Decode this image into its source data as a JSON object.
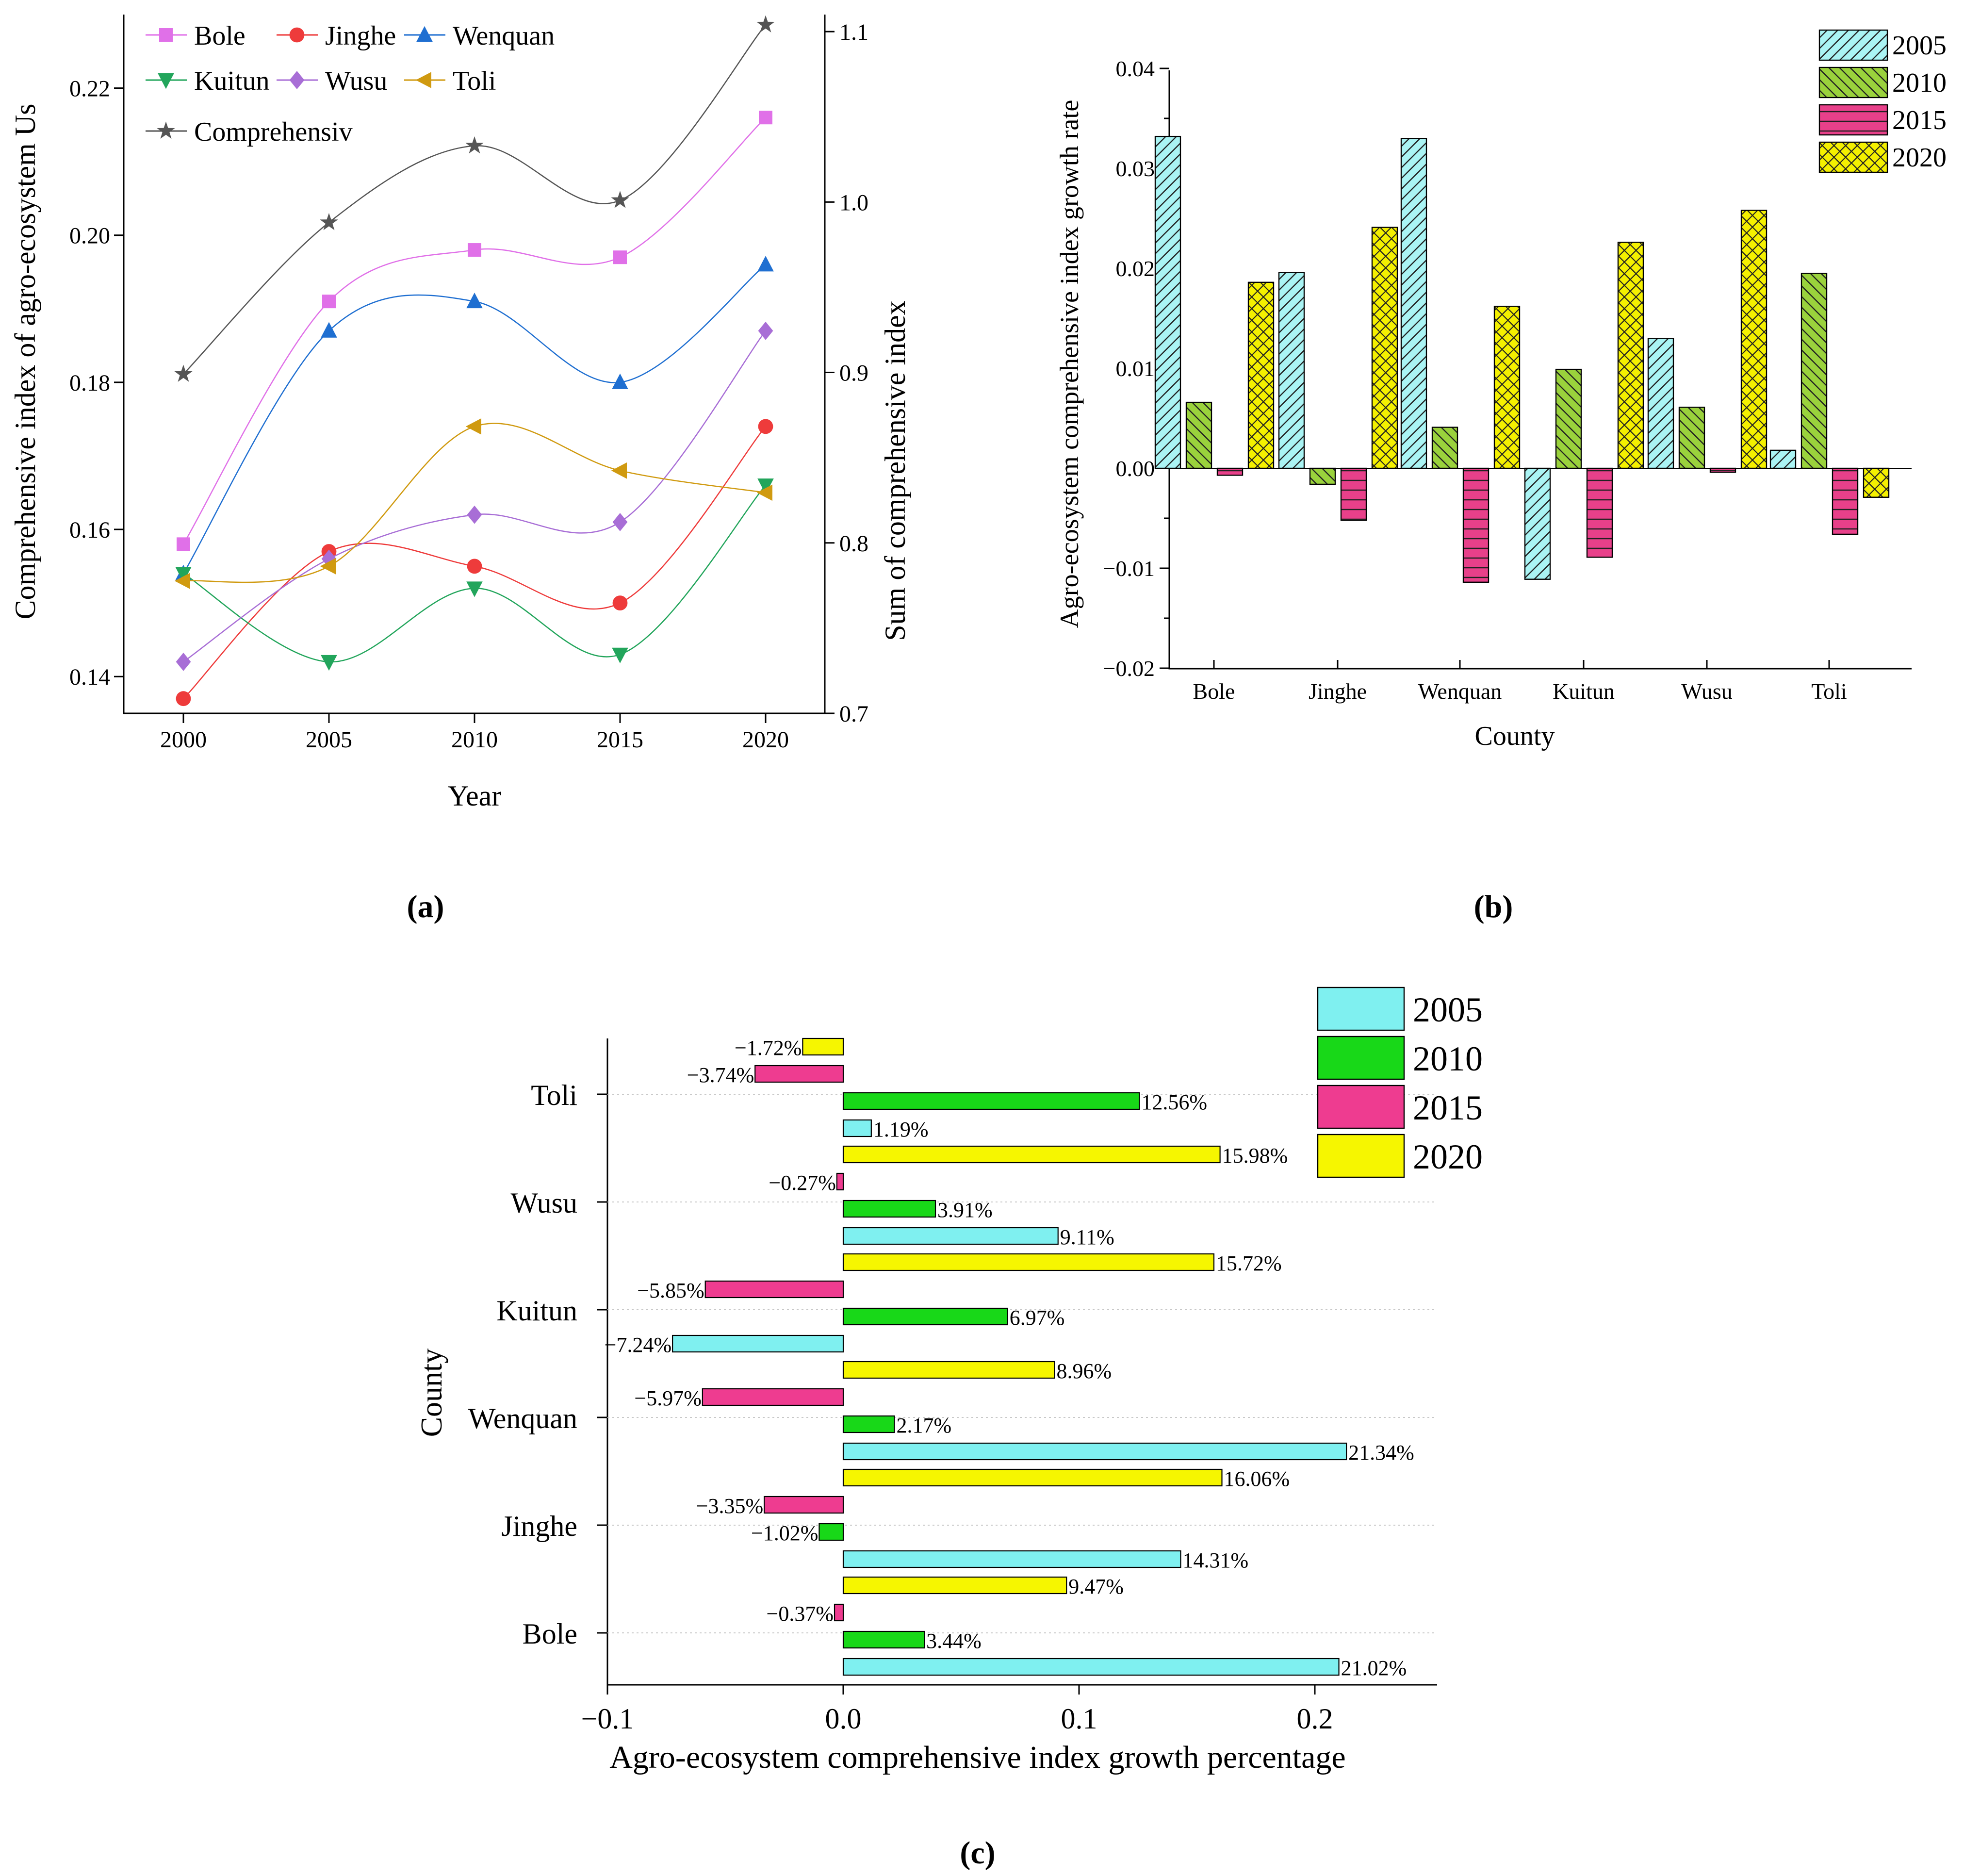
{
  "figure_labels": [
    "(a)",
    "(b)",
    "(c)"
  ],
  "chart_data": [
    {
      "type": "line",
      "panel_label": "(a)",
      "xlabel": "Year",
      "ylabel": "Comprehensive index of agro-ecosystem Us",
      "ylabel_right": "Sum of comprehensive index",
      "x": [
        2000,
        2005,
        2010,
        2015,
        2020
      ],
      "ylim": [
        0.135,
        0.23
      ],
      "yticks": [
        "0.14",
        "0.16",
        "0.18",
        "0.20",
        "0.22"
      ],
      "ylim_right": [
        0.7,
        1.11
      ],
      "yticks_right": [
        "0.7",
        "0.8",
        "0.9",
        "1.0",
        "1.1"
      ],
      "legend_position": "top-left",
      "series": [
        {
          "name": "Bole",
          "axis": "left",
          "marker": "square",
          "color": "#e070e8",
          "values": [
            0.158,
            0.191,
            0.198,
            0.197,
            0.216
          ]
        },
        {
          "name": "Jinghe",
          "axis": "left",
          "marker": "circle",
          "color": "#ee3b3b",
          "values": [
            0.137,
            0.157,
            0.155,
            0.15,
            0.174
          ]
        },
        {
          "name": "Wenquan",
          "axis": "left",
          "marker": "triangle-up",
          "color": "#1f6fd1",
          "values": [
            0.154,
            0.187,
            0.191,
            0.18,
            0.196
          ]
        },
        {
          "name": "Kuitun",
          "axis": "left",
          "marker": "triangle-down",
          "color": "#22a55b",
          "values": [
            0.154,
            0.142,
            0.152,
            0.143,
            0.166
          ]
        },
        {
          "name": "Wusu",
          "axis": "left",
          "marker": "diamond",
          "color": "#a86ed6",
          "values": [
            0.142,
            0.156,
            0.162,
            0.161,
            0.187
          ]
        },
        {
          "name": "Toli",
          "axis": "left",
          "marker": "triangle-left",
          "color": "#d09a10",
          "values": [
            0.153,
            0.155,
            0.174,
            0.168,
            0.165
          ]
        },
        {
          "name": "Comprehensiv",
          "axis": "right",
          "marker": "star",
          "color": "#555555",
          "values": [
            0.899,
            0.988,
            1.033,
            1.001,
            1.104
          ]
        }
      ]
    },
    {
      "type": "bar",
      "panel_label": "(b)",
      "xlabel": "County",
      "ylabel": "Agro-ecosystem comprehensive index growth rate",
      "categories": [
        "Bole",
        "Jinghe",
        "Wenquan",
        "Kuitun",
        "Wusu",
        "Toli"
      ],
      "ylim": [
        -0.02,
        0.04
      ],
      "yticks": [
        "−0.02",
        "−0.01",
        "0.00",
        "0.01",
        "0.02",
        "0.03",
        "0.04"
      ],
      "legend_position": "top-right",
      "series": [
        {
          "name": "2005",
          "color": "#aaf4f4",
          "hatch": "diagonal",
          "values": [
            0.0332,
            0.0196,
            0.033,
            -0.0111,
            0.013,
            0.0018
          ]
        },
        {
          "name": "2010",
          "color": "#9ad23c",
          "hatch": "diagonal-back",
          "values": [
            0.0066,
            -0.0016,
            0.0041,
            0.0099,
            0.0061,
            0.0195
          ]
        },
        {
          "name": "2015",
          "color": "#e8408a",
          "hatch": "horizontal",
          "values": [
            -0.0007,
            -0.0052,
            -0.0114,
            -0.0089,
            -0.0004,
            -0.0066
          ]
        },
        {
          "name": "2020",
          "color": "#f4f000",
          "hatch": "crosshatch",
          "values": [
            0.0186,
            0.0241,
            0.0162,
            0.0226,
            0.0258,
            -0.0029
          ]
        }
      ]
    },
    {
      "type": "bar",
      "orientation": "horizontal",
      "panel_label": "(c)",
      "xlabel": "Agro-ecosystem comprehensive index growth percentage",
      "ylabel": "County",
      "categories": [
        "Bole",
        "Jinghe",
        "Wenquan",
        "Kuitun",
        "Wusu",
        "Toli"
      ],
      "xlim": [
        -0.1,
        0.25
      ],
      "xticks": [
        "−0.1",
        "0.0",
        "0.1",
        "0.2"
      ],
      "legend_position": "top-right",
      "series": [
        {
          "name": "2005",
          "color": "#7ff0f0",
          "values": [
            0.2102,
            0.1431,
            0.2134,
            -0.0724,
            0.0911,
            0.0119
          ],
          "labels": [
            "21.02%",
            "14.31%",
            "21.34%",
            "−7.24%",
            "9.11%",
            "1.19%"
          ]
        },
        {
          "name": "2010",
          "color": "#18d818",
          "values": [
            0.0344,
            -0.0102,
            0.0217,
            0.0697,
            0.0391,
            0.1256
          ],
          "labels": [
            "3.44%",
            "−1.02%",
            "2.17%",
            "6.97%",
            "3.91%",
            "12.56%"
          ]
        },
        {
          "name": "2015",
          "color": "#ee3c90",
          "values": [
            -0.0037,
            -0.0335,
            -0.0597,
            -0.0585,
            -0.0027,
            -0.0374
          ],
          "labels": [
            "−0.37%",
            "−3.35%",
            "−5.97%",
            "−5.85%",
            "−0.27%",
            "−3.74%"
          ]
        },
        {
          "name": "2020",
          "color": "#f6f600",
          "values": [
            0.0947,
            0.1606,
            0.0896,
            0.1572,
            0.1598,
            -0.0172
          ],
          "labels": [
            "9.47%",
            "16.06%",
            "8.96%",
            "15.72%",
            "15.98%",
            "−1.72%"
          ]
        }
      ]
    }
  ]
}
